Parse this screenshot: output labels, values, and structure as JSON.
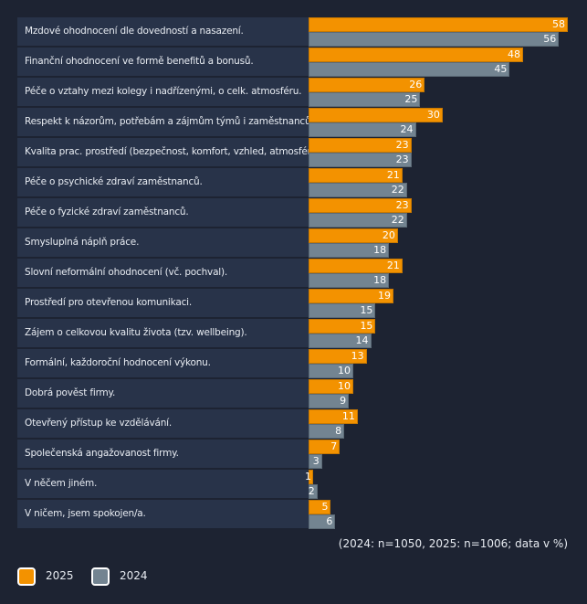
{
  "chart_data": {
    "type": "bar",
    "orientation": "horizontal",
    "categories": [
      "Mzdové ohodnocení dle dovedností a nasazení.",
      "Finanční ohodnocení ve formě benefitů a bonusů.",
      "Péče o vztahy mezi kolegy i nadřízenými, o celk. atmosféru.",
      "Respekt k názorům, potřebám a zájmům  týmů i zaměstnanců.",
      "Kvalita prac. prostředí (bezpečnost, komfort, vzhled, atmosféra).",
      "Péče o psychické zdraví zaměstnanců.",
      "Péče o fyzické zdraví zaměstnanců.",
      "Smysluplná náplň práce.",
      "Slovní neformální ohodnocení (vč. pochval).",
      "Prostředí pro otevřenou komunikaci.",
      "Zájem o celkovou kvalitu života (tzv. wellbeing).",
      "Formální, každoroční hodnocení výkonu.",
      "Dobrá pověst firmy.",
      "Otevřený přístup ke vzdělávání.",
      "Společenská angažovanost firmy.",
      "V něčem jiném.",
      "V ničem, jsem spokojen/a."
    ],
    "series": [
      {
        "name": "2025",
        "color": "#f39200",
        "values": [
          58,
          48,
          26,
          30,
          23,
          21,
          23,
          20,
          21,
          19,
          15,
          13,
          10,
          11,
          7,
          1,
          5
        ]
      },
      {
        "name": "2024",
        "color": "#738491",
        "values": [
          56,
          45,
          25,
          24,
          23,
          22,
          22,
          18,
          18,
          15,
          14,
          10,
          9,
          8,
          3,
          2,
          6
        ]
      }
    ],
    "xlim": [
      0,
      58
    ],
    "grid": false,
    "legend": "bottom-left",
    "annotation": "(2024: n=1050, 2025: n=1006; data v %)"
  }
}
